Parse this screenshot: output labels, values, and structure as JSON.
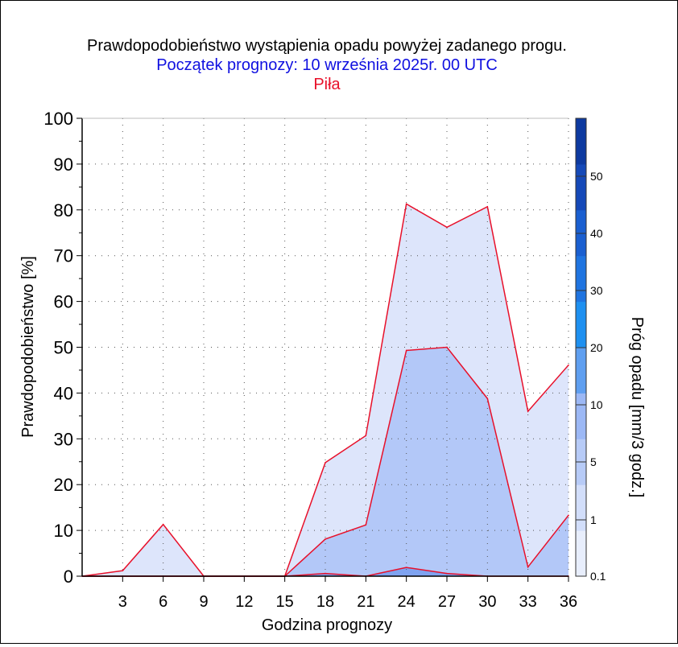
{
  "title": "Prawdopodobieństwo wystąpienia opadu powyżej zadanego progu.",
  "subtitle": "Początek prognozy: 10 września 2025r. 00 UTC",
  "location": "Piła",
  "colors": {
    "title": "#000000",
    "subtitle": "#1010e0",
    "location": "#e8102a",
    "series_line": "#e8102a",
    "band_1": "#dde5fb",
    "band_2": "#b3c8f8",
    "band_3": "#7fa3f0"
  },
  "chart_data": {
    "type": "area",
    "xlabel": "Godzina prognozy",
    "ylabel": "Prawdopodobieństwo [%]",
    "xlim": [
      0,
      36
    ],
    "ylim": [
      0,
      100
    ],
    "x_ticks": [
      3,
      6,
      9,
      12,
      15,
      18,
      21,
      24,
      27,
      30,
      33,
      36
    ],
    "y_ticks": [
      0,
      10,
      20,
      30,
      40,
      50,
      60,
      70,
      80,
      90,
      100
    ],
    "grid": true,
    "x": [
      0,
      3,
      6,
      9,
      12,
      15,
      18,
      21,
      24,
      27,
      30,
      33,
      36
    ],
    "series": [
      {
        "values": [
          0,
          1.2,
          11.3,
          0,
          0,
          0,
          24.8,
          30.7,
          81.3,
          76.2,
          80.7,
          36.0,
          46.1
        ]
      },
      {
        "values": [
          0,
          0,
          0,
          0,
          0,
          0,
          8.1,
          11.2,
          49.3,
          50.0,
          38.8,
          2.0,
          13.3
        ]
      },
      {
        "values": [
          0,
          0,
          0,
          0,
          0,
          0,
          0.6,
          0,
          1.9,
          0.6,
          0,
          0,
          0
        ]
      }
    ],
    "colorbar": {
      "label": "Próg opadu [mm/3 godz.]",
      "tick_labels": [
        "0.1",
        "1",
        "5",
        "10",
        "20",
        "30",
        "40",
        "50"
      ],
      "segments": [
        "#e8eefc",
        "#d2defa",
        "#b7cbf7",
        "#9cb8f5",
        "#5f9ff0",
        "#1e90f0",
        "#1f74e0",
        "#1a5fd0",
        "#1549b8",
        "#0d3aa0"
      ]
    }
  }
}
